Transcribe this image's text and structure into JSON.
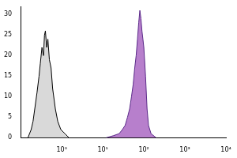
{
  "chart_data": {
    "type": "line",
    "log": "x",
    "grid": false,
    "xlim": [
      0.1,
      10000
    ],
    "xticks": [
      {
        "value": 1,
        "label": "10⁰"
      },
      {
        "value": 10,
        "label": "10¹"
      },
      {
        "value": 100,
        "label": "10²"
      },
      {
        "value": 1000,
        "label": "10³"
      },
      {
        "value": 10000,
        "label": "10⁴"
      }
    ],
    "ylim": [
      0,
      32
    ],
    "yticks": [
      0,
      5,
      10,
      15,
      20,
      25,
      30
    ],
    "series": [
      {
        "color": "#d9d9d9",
        "line_color": "#000000",
        "x": [
          0.15,
          0.18,
          0.2,
          0.22,
          0.25,
          0.28,
          0.3,
          0.33,
          0.36,
          0.38,
          0.4,
          0.43,
          0.46,
          0.5,
          0.55,
          0.6,
          0.7,
          0.8,
          0.95,
          1.2,
          1.5
        ],
        "values": [
          0,
          2,
          4,
          7,
          11,
          15,
          18,
          22,
          20,
          25,
          26,
          22,
          24,
          19,
          17,
          12,
          7,
          4,
          2,
          1,
          0
        ]
      },
      {
        "color": "#b77fcc",
        "line_color": "#5a2a88",
        "x": [
          12,
          18,
          25,
          30,
          35,
          40,
          45,
          50,
          55,
          60,
          65,
          70,
          75,
          80,
          85,
          90,
          95,
          100,
          110,
          120,
          130,
          150,
          200
        ],
        "values": [
          0,
          0.5,
          1,
          2,
          3,
          5,
          7,
          10,
          13,
          17,
          20,
          24,
          28,
          31,
          29,
          26,
          24,
          22,
          15,
          7,
          3,
          1,
          0
        ]
      }
    ]
  }
}
